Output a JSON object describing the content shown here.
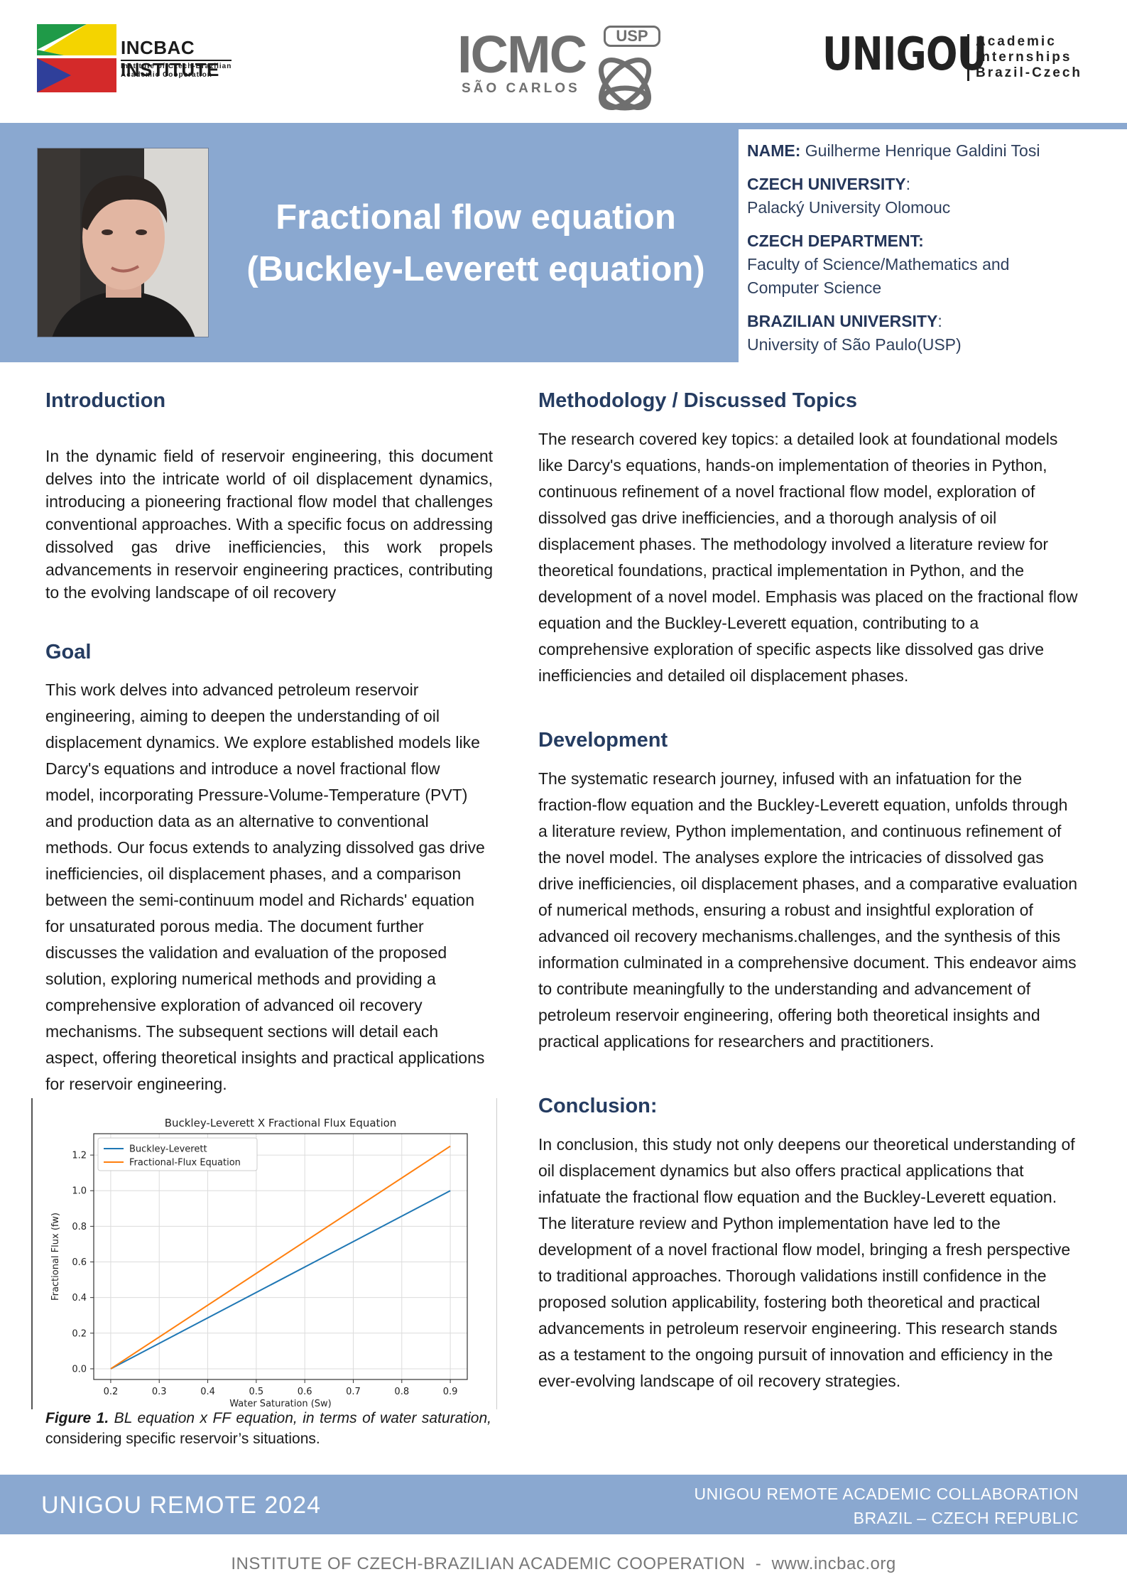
{
  "logos": {
    "incbac_name": "INCBAC INSTITUTE",
    "incbac_sub_1": "Institute of Czech-Brazilian",
    "incbac_sub_2": "Academic Cooperation",
    "icmc_big": "ICMC",
    "icmc_usp": "USP",
    "icmc_city": "SÃO CARLOS",
    "unigou_big": "UNIGOU",
    "unigou_line_1": "Academic",
    "unigou_line_2": "Internships",
    "unigou_line_3": "Brazil-Czech"
  },
  "header": {
    "title_line_1": "Fractional flow equation",
    "title_line_2": "(Buckley-Leverett equation)",
    "name_label": "NAME:",
    "name_value": "Guilherme Henrique Galdini Tosi",
    "czech_university_label": "CZECH UNIVERSITY",
    "czech_university_colon": ":",
    "czech_university_value": "Palacký University Olomouc",
    "czech_department_label": "CZECH DEPARTMENT:",
    "czech_department_value_1": "Faculty of Science/Mathematics and",
    "czech_department_value_2": "Computer Science",
    "brazilian_university_label": "BRAZILIAN UNIVERSITY",
    "brazilian_university_colon": ":",
    "brazilian_university_value": "University of São Paulo(USP)"
  },
  "sections": {
    "introduction_title": "Introduction",
    "introduction_text": "In the dynamic field of reservoir engineering, this document delves into the intricate world of oil displacement dynamics, introducing a pioneering fractional flow model that challenges conventional approaches. With a specific focus on addressing dissolved gas drive inefficiencies, this work propels advancements in reservoir engineering practices, contributing to the evolving landscape of oil recovery",
    "goal_title": "Goal",
    "goal_text": "This work delves into advanced petroleum reservoir engineering, aiming to deepen the understanding of oil displacement dynamics. We explore established models like Darcy's equations and introduce a novel fractional flow model, incorporating Pressure-Volume-Temperature (PVT) and production data as an alternative to conventional methods. Our focus extends to analyzing dissolved gas drive inefficiencies, oil displacement phases, and a comparison between the semi-continuum model and Richards' equation for unsaturated porous media. The document further discusses the validation and evaluation of the proposed solution, exploring numerical methods and providing a comprehensive exploration of advanced oil recovery mechanisms. The subsequent sections will detail each aspect, offering theoretical insights and practical applications for reservoir engineering.",
    "methodology_title": "Methodology / Discussed Topics",
    "methodology_text": "The research covered key topics: a detailed look at foundational models like Darcy's equations, hands-on implementation of theories in Python, continuous refinement of a novel fractional flow model, exploration of dissolved gas drive inefficiencies, and a thorough analysis of oil displacement phases. The methodology involved a literature review for theoretical foundations, practical implementation in Python, and the development of a novel model. Emphasis was placed on the fractional flow equation and the Buckley-Leverett equation, contributing to a comprehensive exploration of specific aspects like dissolved gas drive inefficiencies and detailed oil displacement phases.",
    "development_title": "Development",
    "development_text": "The systematic research journey, infused with an infatuation for the fraction-flow equation and the Buckley-Leverett equation, unfolds through a literature review, Python implementation, and continuous refinement of the novel model. The analyses explore the intricacies of dissolved gas drive inefficiencies, oil displacement phases, and a comparative evaluation of numerical methods, ensuring a robust and insightful exploration of advanced oil recovery mechanisms.challenges, and the synthesis of this information culminated in a comprehensive document. This endeavor aims to contribute meaningfully to the understanding and advancement of petroleum reservoir engineering, offering both theoretical insights and practical applications for researchers and practitioners.",
    "conclusion_title": "Conclusion:",
    "conclusion_text": "In conclusion, this study not only deepens our theoretical understanding of oil displacement dynamics but also offers practical applications that infatuate the fractional flow equation and the Buckley-Leverett equation. The literature review and Python implementation have led to the development of a novel fractional flow model, bringing a fresh perspective to traditional approaches. Thorough validations instill confidence in the proposed solution applicability, fostering both theoretical and practical advancements in petroleum reservoir engineering. This research stands as a testament to the ongoing pursuit of innovation and efficiency in the ever-evolving landscape of oil recovery strategies."
  },
  "figure": {
    "caption_bold": "Figure 1.",
    "caption_italic": " BL equation x FF equation, in terms of water saturation,",
    "caption_rest": " considering specific reservoir’s situations."
  },
  "chart_data": {
    "type": "line",
    "title": "Buckley-Leverett X Fractional Flux Equation",
    "xlabel": "Water Saturation (Sw)",
    "ylabel": "Fractional Flux (fw)",
    "xlim": [
      0.165,
      0.935
    ],
    "ylim": [
      -0.06,
      1.32
    ],
    "xticks": [
      0.2,
      0.3,
      0.4,
      0.5,
      0.6,
      0.7,
      0.8,
      0.9
    ],
    "xtick_labels": [
      "0.2",
      "0.3",
      "0.4",
      "0.5",
      "0.6",
      "0.7",
      "0.8",
      "0.9"
    ],
    "yticks": [
      0.0,
      0.2,
      0.4,
      0.6,
      0.8,
      1.0,
      1.2
    ],
    "ytick_labels": [
      "0.0",
      "0.2",
      "0.4",
      "0.6",
      "0.8",
      "1.0",
      "1.2"
    ],
    "grid": true,
    "legend_position": "top-left",
    "series": [
      {
        "name": "Buckley-Leverett",
        "color": "#1f77b4",
        "x": [
          0.2,
          0.9
        ],
        "y": [
          0.0,
          1.0
        ]
      },
      {
        "name": "Fractional-Flux Equation",
        "color": "#ff7f0e",
        "x": [
          0.2,
          0.9
        ],
        "y": [
          0.0,
          1.25
        ]
      }
    ]
  },
  "footer": {
    "left": "UNIGOU REMOTE 2024",
    "right_1": "UNIGOU REMOTE ACADEMIC COLLABORATION",
    "right_2": "BRAZIL – CZECH REPUBLIC",
    "bottom": "INSTITUTE OF CZECH-BRAZILIAN ACADEMIC COOPERATION  -  www.incbac.org"
  },
  "colors": {
    "band": "#8aa8d0",
    "heading": "#253c61"
  }
}
